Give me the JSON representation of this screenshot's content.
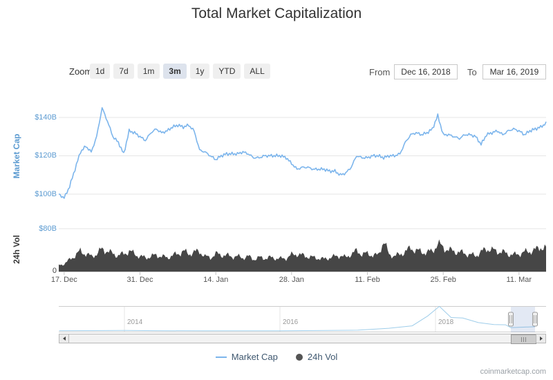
{
  "title": "Total Market Capitalization",
  "attribution": "coinmarketcap.com",
  "toolbar": {
    "zoom_label": "Zoom",
    "zoom_buttons": [
      "1d",
      "7d",
      "1m",
      "3m",
      "1y",
      "YTD",
      "ALL"
    ],
    "active_zoom": "3m",
    "from_label": "From",
    "from_value": "Dec 16, 2018",
    "to_label": "To",
    "to_value": "Mar 16, 2019"
  },
  "legend": [
    {
      "label": "Market Cap",
      "color": "#7cb5ec",
      "marker": "line"
    },
    {
      "label": "24h Vol",
      "color": "#545454",
      "marker": "dot"
    }
  ],
  "navigator": {
    "years": [
      "2014",
      "2016",
      "2018"
    ],
    "spark": [
      [
        2013.16,
        10
      ],
      [
        2013.6,
        12
      ],
      [
        2014,
        15
      ],
      [
        2014.4,
        9
      ],
      [
        2015,
        5
      ],
      [
        2015.6,
        5
      ],
      [
        2016,
        8
      ],
      [
        2016.5,
        13
      ],
      [
        2017,
        25
      ],
      [
        2017.4,
        90
      ],
      [
        2017.7,
        170
      ],
      [
        2017.9,
        500
      ],
      [
        2018.05,
        820
      ],
      [
        2018.2,
        450
      ],
      [
        2018.35,
        430
      ],
      [
        2018.55,
        280
      ],
      [
        2018.75,
        215
      ],
      [
        2018.9,
        205
      ],
      [
        2018.97,
        110
      ],
      [
        2019.1,
        125
      ],
      [
        2019.28,
        140
      ]
    ]
  },
  "chart_data": [
    {
      "type": "line",
      "name": "Market Cap",
      "color": "#7cb5ec",
      "ylabel": "Market Cap",
      "yticks": [
        "$140B",
        "$120B",
        "$100B"
      ],
      "ylim_billions": [
        95,
        148
      ],
      "x_range": [
        "Dec 16, 2018",
        "Mar 16, 2019"
      ],
      "x_ticks": [
        "17. Dec",
        "31. Dec",
        "14. Jan",
        "28. Jan",
        "11. Feb",
        "25. Feb",
        "11. Mar"
      ],
      "tick_indices": [
        1,
        15,
        29,
        43,
        57,
        71,
        85
      ],
      "unit": "USD billions, daily total crypto market cap",
      "values": [
        100,
        98,
        104,
        113,
        122,
        125,
        122,
        130,
        145,
        138,
        130,
        127,
        121,
        133,
        132,
        130,
        128,
        132,
        134,
        132,
        133,
        135,
        136,
        135,
        136,
        133,
        123,
        122,
        120,
        118,
        120,
        121,
        121,
        121,
        122,
        121,
        119,
        119,
        120,
        120,
        120,
        120,
        119,
        116,
        113,
        114,
        114,
        113,
        113,
        113,
        112,
        112,
        110,
        111,
        114,
        120,
        119,
        119,
        120,
        120,
        119,
        120,
        120,
        121,
        127,
        131,
        132,
        131,
        132,
        134,
        141,
        131,
        131,
        130,
        129,
        131,
        131,
        130,
        126,
        131,
        132,
        133,
        131,
        133,
        134,
        133,
        131,
        133,
        134,
        135,
        137
      ]
    },
    {
      "type": "area",
      "name": "24h Vol",
      "color": "#464646",
      "ylabel": "24h Vol",
      "yticks": [
        "$80B",
        "0"
      ],
      "ylim_billions": [
        0,
        80
      ],
      "unit": "USD billions, daily 24h volume",
      "values": [
        12,
        14,
        22,
        30,
        38,
        33,
        28,
        33,
        42,
        38,
        33,
        30,
        33,
        38,
        33,
        28,
        26,
        28,
        31,
        28,
        26,
        30,
        33,
        38,
        33,
        36,
        38,
        28,
        26,
        33,
        31,
        30,
        28,
        28,
        26,
        28,
        23,
        26,
        25,
        26,
        25,
        24,
        25,
        31,
        33,
        30,
        28,
        26,
        25,
        23,
        26,
        28,
        30,
        26,
        33,
        38,
        33,
        33,
        31,
        30,
        58,
        31,
        30,
        31,
        38,
        43,
        40,
        36,
        36,
        38,
        52,
        45,
        40,
        38,
        36,
        34,
        31,
        30,
        36,
        43,
        40,
        38,
        36,
        33,
        31,
        33,
        36,
        38,
        40,
        46,
        43
      ]
    }
  ]
}
